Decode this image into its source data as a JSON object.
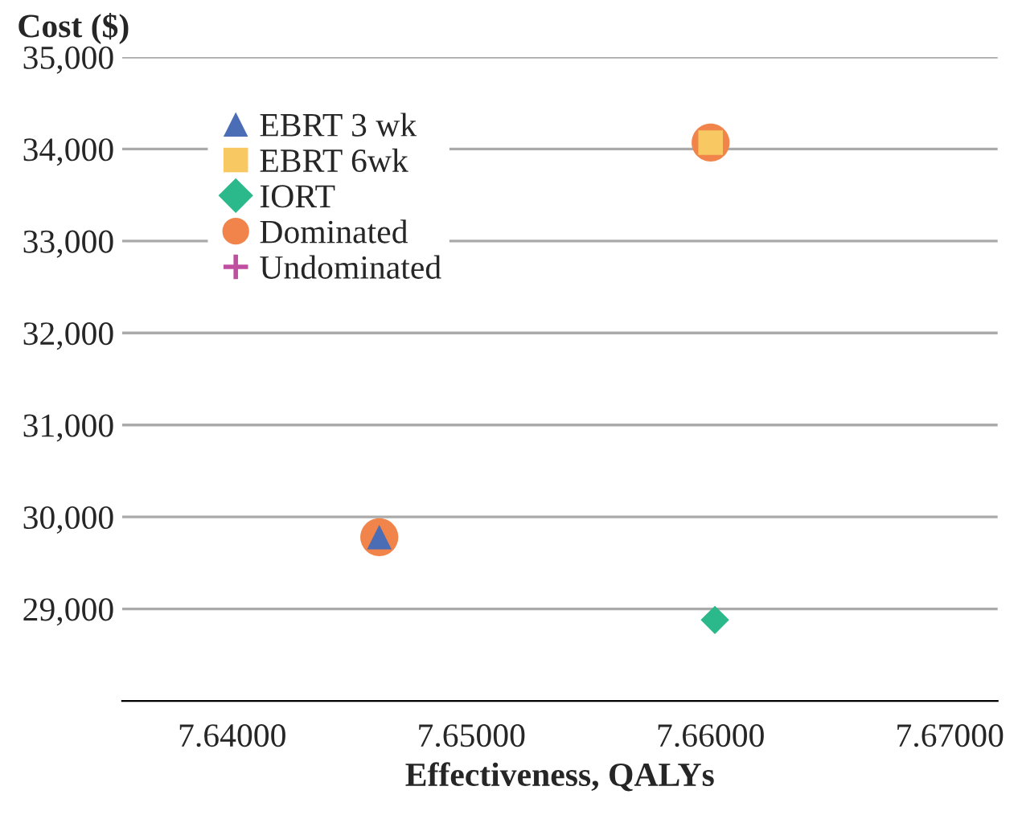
{
  "chart_data": {
    "type": "scatter",
    "xlabel": "Effectiveness, QALYs",
    "ylabel": "Cost ($)",
    "xlim": [
      7.6354,
      7.672
    ],
    "xticks": [
      {
        "value": 7.64,
        "label": "7.64000"
      },
      {
        "value": 7.65,
        "label": "7.65000"
      },
      {
        "value": 7.66,
        "label": "7.66000"
      },
      {
        "value": 7.67,
        "label": "7.67000"
      }
    ],
    "ylim": [
      28000,
      35000
    ],
    "yticks": [
      {
        "value": 29000,
        "label": "29,000"
      },
      {
        "value": 30000,
        "label": "30,000"
      },
      {
        "value": 31000,
        "label": "31,000"
      },
      {
        "value": 32000,
        "label": "32,000"
      },
      {
        "value": 33000,
        "label": "33,000"
      },
      {
        "value": 34000,
        "label": "34,000"
      },
      {
        "value": 35000,
        "label": "35,000"
      }
    ],
    "grid": "y",
    "legend": "top left",
    "series": [
      {
        "name": "EBRT 3 wk",
        "color": "#4a6db5",
        "marker": "triangle",
        "x": [
          7.64615
        ],
        "values": [
          29780
        ]
      },
      {
        "name": "EBRT 6wk",
        "color": "#f8c862",
        "marker": "square",
        "x": [
          7.66
        ],
        "values": [
          34070
        ]
      },
      {
        "name": "IORT",
        "color": "#2bb88a",
        "marker": "diamond",
        "x": [
          7.66018
        ],
        "values": [
          28880
        ]
      },
      {
        "name": "Dominated",
        "color": "#f0844a",
        "marker": "circle",
        "x": [
          7.64615,
          7.66
        ],
        "values": [
          29780,
          34070
        ]
      },
      {
        "name": "Undominated",
        "color": "#c04fa0",
        "marker": "cross"
      }
    ]
  }
}
